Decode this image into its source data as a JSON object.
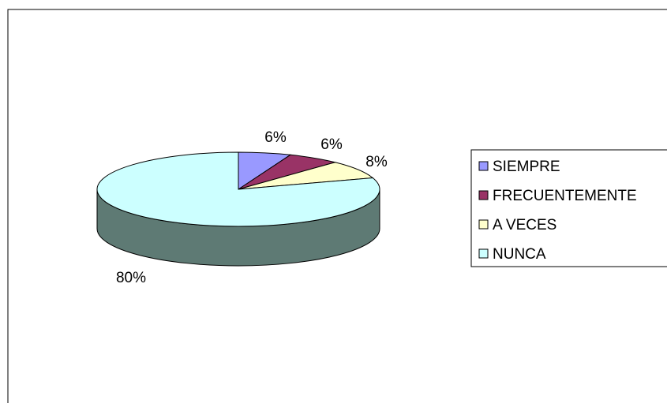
{
  "chart_data": {
    "type": "pie",
    "style": "3d",
    "categories": [
      "SIEMPRE",
      "FRECUENTEMENTE",
      "A VECES",
      "NUNCA"
    ],
    "values": [
      6,
      6,
      8,
      80
    ],
    "value_labels": [
      "6%",
      "6%",
      "8%",
      "80%"
    ],
    "colors": [
      "#9999ff",
      "#993366",
      "#ffffcc",
      "#ccffff"
    ],
    "side_color": "#5e7a74",
    "legend_placement": "right"
  }
}
